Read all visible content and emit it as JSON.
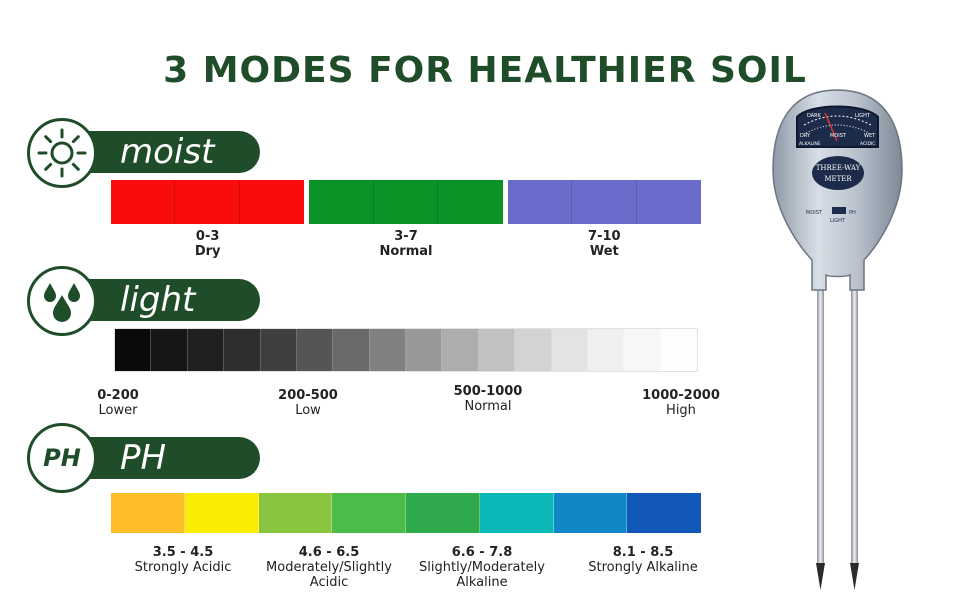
{
  "title": "3 MODES FOR HEALTHIER SOIL",
  "moist": {
    "label": "moist",
    "icon": "sun-icon",
    "groups": [
      {
        "color": "#f90c0c",
        "range": "0-3",
        "desc": "Dry"
      },
      {
        "color": "#0c9328",
        "range": "3-7",
        "desc": "Normal"
      },
      {
        "color": "#6b6bcc",
        "range": "7-10",
        "desc": "Wet"
      }
    ]
  },
  "light": {
    "label": "light",
    "icon": "water-drops-icon",
    "ranges": [
      {
        "range": "0-200",
        "desc": "Lower"
      },
      {
        "range": "200-500",
        "desc": "Low"
      },
      {
        "range": "500-1000",
        "desc": "Normal"
      },
      {
        "range": "1000-2000",
        "desc": "High"
      }
    ],
    "gradient": [
      "#0a0a0a",
      "#161616",
      "#202020",
      "#2e2e2e",
      "#3f3f3f",
      "#555555",
      "#6a6a6a",
      "#808080",
      "#989898",
      "#adadad",
      "#c1c1c1",
      "#d3d3d3",
      "#e3e3e3",
      "#efefef",
      "#f7f7f7",
      "#fdfdfd"
    ]
  },
  "ph": {
    "label": "PH",
    "badge_text": "PH",
    "colors": [
      "#fcbd26",
      "#f9ed05",
      "#8ac540",
      "#4dbb4a",
      "#2ea94b",
      "#0ab8b8",
      "#1287c8",
      "#1158b8"
    ],
    "ranges": [
      {
        "range": "3.5 - 4.5",
        "desc": "Strongly Acidic"
      },
      {
        "range": "4.6 - 6.5",
        "desc": "Moderately/Slightly Acidic"
      },
      {
        "range": "6.6 - 7.8",
        "desc": "Slightly/Moderately Alkaline"
      },
      {
        "range": "8.1 - 8.5",
        "desc": "Strongly Alkaline"
      }
    ]
  },
  "meter": {
    "face_top": "MOIST",
    "face_left": "DRY",
    "face_right": "WET",
    "face_left2": "ALKALINE",
    "face_right2": "ACIDIC",
    "brand_line1": "THREE-WAY",
    "brand_line2": "METER",
    "switch_left": "MOIST",
    "switch_right": "PH",
    "switch_bottom": "LIGHT",
    "dark_label": "DARK",
    "light_label": "LIGHT"
  }
}
